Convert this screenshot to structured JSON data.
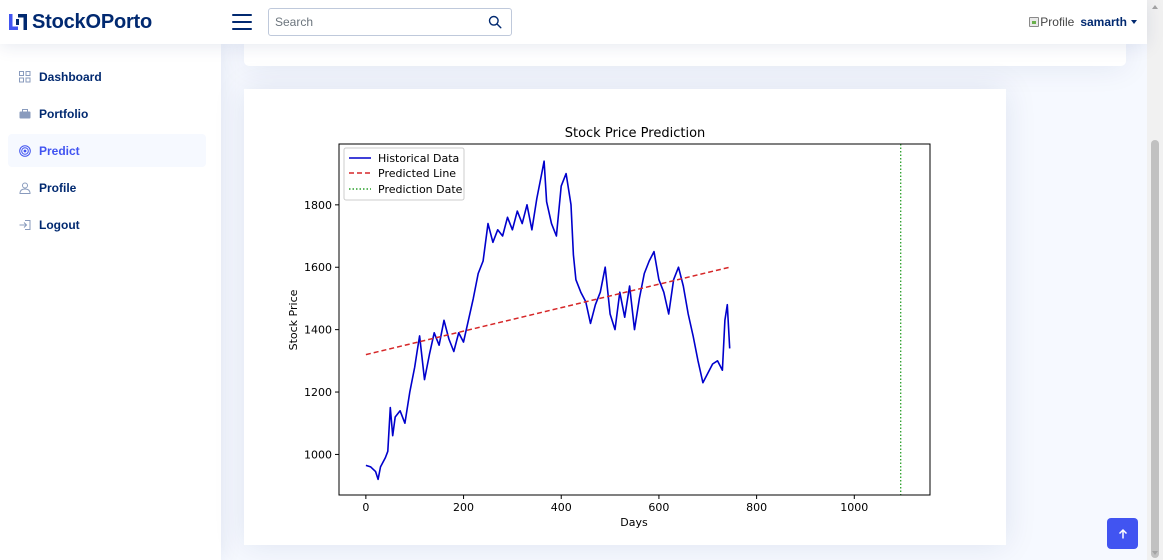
{
  "header": {
    "app_name": "StockOPorto",
    "search": {
      "placeholder": "Search",
      "value": ""
    },
    "profile_alt": "Profile",
    "username": "samarth"
  },
  "sidebar": {
    "items": [
      {
        "label": "Dashboard",
        "icon": "grid-icon",
        "active": false
      },
      {
        "label": "Portfolio",
        "icon": "briefcase-icon",
        "active": false
      },
      {
        "label": "Predict",
        "icon": "target-icon",
        "active": true
      },
      {
        "label": "Profile",
        "icon": "person-icon",
        "active": false
      },
      {
        "label": "Logout",
        "icon": "logout-icon",
        "active": false
      }
    ]
  },
  "colors": {
    "accent": "#4154f1",
    "navy": "#012970",
    "historical": "#0000cc",
    "predicted": "#d62728",
    "prediction_date": "#2ca02c"
  },
  "chart_data": {
    "type": "line",
    "title": "Stock Price Prediction",
    "xlabel": "Days",
    "ylabel": "Stock Price",
    "xlim": [
      -55,
      1155
    ],
    "ylim": [
      870,
      1995
    ],
    "xticks": [
      0,
      200,
      400,
      600,
      800,
      1000
    ],
    "yticks": [
      1000,
      1200,
      1400,
      1600,
      1800
    ],
    "legend_position": "top-left",
    "legend": [
      "Historical Data",
      "Predicted Line",
      "Prediction Date"
    ],
    "series": [
      {
        "name": "Historical Data",
        "style": "solid",
        "color": "#0000cc",
        "x": [
          0,
          10,
          20,
          25,
          30,
          40,
          45,
          50,
          55,
          60,
          70,
          80,
          90,
          100,
          105,
          110,
          120,
          130,
          140,
          150,
          160,
          170,
          180,
          190,
          200,
          210,
          220,
          230,
          240,
          250,
          260,
          270,
          280,
          290,
          300,
          310,
          320,
          330,
          340,
          350,
          360,
          365,
          370,
          380,
          390,
          400,
          410,
          420,
          425,
          430,
          440,
          450,
          460,
          470,
          480,
          490,
          500,
          510,
          520,
          530,
          540,
          550,
          560,
          570,
          580,
          590,
          600,
          610,
          620,
          630,
          640,
          650,
          660,
          670,
          680,
          690,
          700,
          710,
          720,
          730,
          735,
          740,
          745
        ],
        "y": [
          965,
          960,
          945,
          920,
          960,
          990,
          1010,
          1150,
          1060,
          1120,
          1140,
          1100,
          1200,
          1280,
          1330,
          1380,
          1240,
          1320,
          1390,
          1350,
          1430,
          1370,
          1330,
          1390,
          1360,
          1430,
          1500,
          1580,
          1620,
          1740,
          1680,
          1720,
          1700,
          1760,
          1720,
          1780,
          1740,
          1800,
          1720,
          1820,
          1900,
          1940,
          1810,
          1740,
          1700,
          1860,
          1900,
          1800,
          1640,
          1560,
          1520,
          1490,
          1420,
          1480,
          1520,
          1600,
          1450,
          1400,
          1520,
          1440,
          1540,
          1400,
          1500,
          1580,
          1620,
          1650,
          1560,
          1520,
          1450,
          1560,
          1600,
          1540,
          1450,
          1380,
          1300,
          1230,
          1260,
          1290,
          1300,
          1270,
          1430,
          1480,
          1340
        ]
      },
      {
        "name": "Predicted Line",
        "style": "dashed",
        "color": "#d62728",
        "x": [
          0,
          745
        ],
        "y": [
          1320,
          1600
        ]
      },
      {
        "name": "Prediction Date",
        "style": "dotted",
        "color": "#2ca02c",
        "vline_x": 1095
      }
    ]
  }
}
